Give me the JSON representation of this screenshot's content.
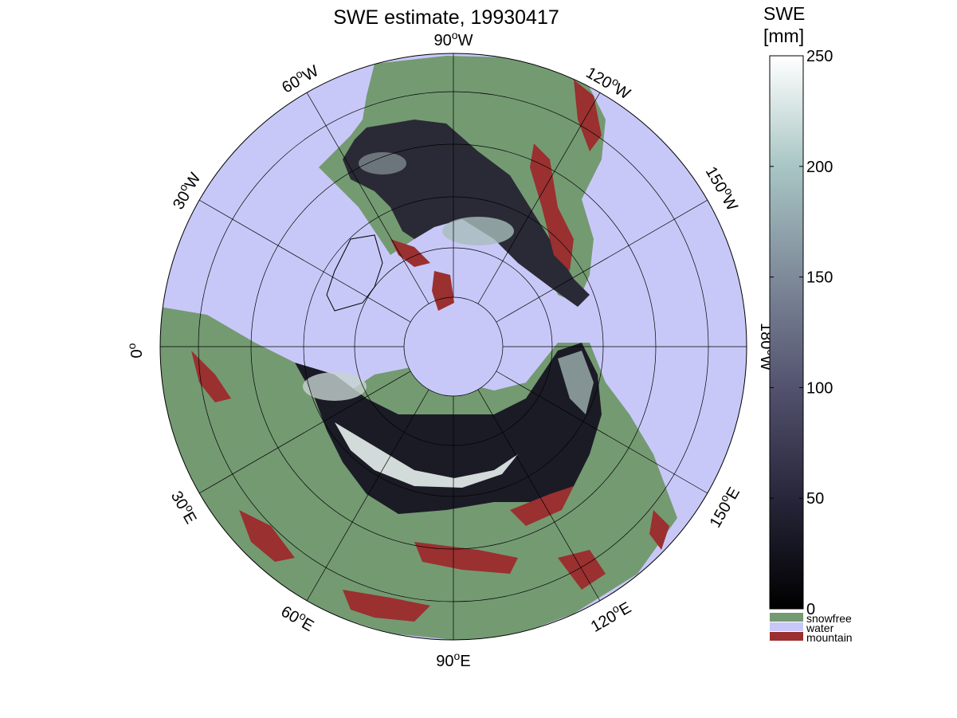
{
  "title": "SWE estimate, 19930417",
  "colorbar": {
    "title_line1": "SWE",
    "title_line2": "[mm]",
    "ticks": [
      "0",
      "50",
      "100",
      "150",
      "200",
      "250"
    ],
    "range": [
      0,
      250
    ],
    "gradient_colors": [
      "#000000",
      "#27263a",
      "#53526e",
      "#7e8a9a",
      "#a8c6c4",
      "#ffffff"
    ]
  },
  "legend": {
    "items": [
      {
        "label": "snowfree",
        "color": "#749a72"
      },
      {
        "label": "water",
        "color": "#c8c8f8"
      },
      {
        "label": "mountain",
        "color": "#9a3030"
      }
    ]
  },
  "map": {
    "projection": "north polar stereographic",
    "ocean_color": "#c8c8f8",
    "land_color": "#749a72",
    "graticule_color": "#000000",
    "longitude_labels": [
      {
        "deg": "90",
        "hemi": "W"
      },
      {
        "deg": "120",
        "hemi": "W"
      },
      {
        "deg": "150",
        "hemi": "W"
      },
      {
        "deg": "180",
        "hemi": "W"
      },
      {
        "deg": "150",
        "hemi": "E"
      },
      {
        "deg": "120",
        "hemi": "E"
      },
      {
        "deg": "90",
        "hemi": "E"
      },
      {
        "deg": "60",
        "hemi": "E"
      },
      {
        "deg": "30",
        "hemi": "E"
      },
      {
        "deg": "0",
        "hemi": ""
      },
      {
        "deg": "30",
        "hemi": "W"
      },
      {
        "deg": "60",
        "hemi": "W"
      }
    ]
  }
}
